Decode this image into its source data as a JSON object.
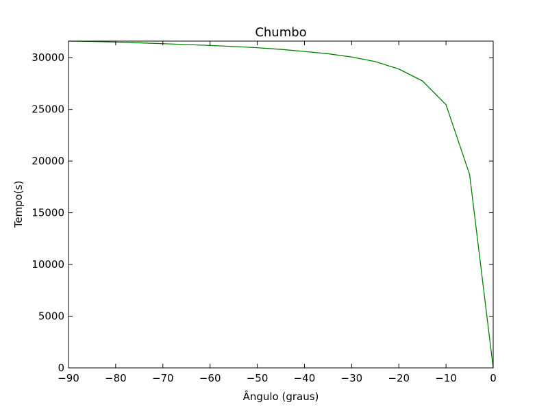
{
  "chart_data": {
    "type": "line",
    "title": "Chumbo",
    "xlabel": "Ângulo (graus)",
    "ylabel": "Tempo(s)",
    "xlim": [
      -90,
      0
    ],
    "ylim": [
      0,
      31600
    ],
    "xticks": [
      -90,
      -80,
      -70,
      -60,
      -50,
      -40,
      -30,
      -20,
      -10,
      0
    ],
    "xtick_labels": [
      "−90",
      "−80",
      "−70",
      "−60",
      "−50",
      "−40",
      "−30",
      "−20",
      "−10",
      "0"
    ],
    "yticks": [
      0,
      5000,
      10000,
      15000,
      20000,
      25000,
      30000
    ],
    "ytick_labels": [
      "0",
      "5000",
      "10000",
      "15000",
      "20000",
      "25000",
      "30000"
    ],
    "grid": false,
    "series": [
      {
        "color": "#008000",
        "x": [
          -90,
          -85,
          -80,
          -75,
          -70,
          -65,
          -60,
          -55,
          -50,
          -45,
          -40,
          -35,
          -30,
          -25,
          -20,
          -15,
          -10,
          -5,
          0
        ],
        "y": [
          31600,
          31570,
          31500,
          31430,
          31350,
          31270,
          31180,
          31080,
          30960,
          30800,
          30600,
          30380,
          30060,
          29620,
          28900,
          27750,
          25450,
          18700,
          0
        ]
      }
    ]
  }
}
